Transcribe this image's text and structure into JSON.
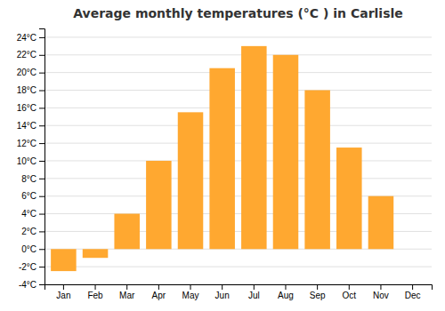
{
  "chart_data": {
    "type": "bar",
    "title": "Average monthly temperatures (°C ) in Carlisle",
    "categories": [
      "Jan",
      "Feb",
      "Mar",
      "Apr",
      "May",
      "Jun",
      "Jul",
      "Aug",
      "Sep",
      "Oct",
      "Nov",
      "Dec"
    ],
    "values": [
      -2.5,
      -1.0,
      4.0,
      10.0,
      15.5,
      20.5,
      23.0,
      22.0,
      18.0,
      11.5,
      6.0,
      0.0
    ],
    "color": "#FFA830",
    "ylim": [
      -4,
      25
    ],
    "yticks": [
      {
        "value": -4,
        "label": "-4°C"
      },
      {
        "value": -2,
        "label": "-2°C"
      },
      {
        "value": 0,
        "label": "0°C"
      },
      {
        "value": 2,
        "label": "2°C"
      },
      {
        "value": 4,
        "label": "4°C"
      },
      {
        "value": 6,
        "label": "6°C"
      },
      {
        "value": 8,
        "label": "8°C"
      },
      {
        "value": 10,
        "label": "10°C"
      },
      {
        "value": 12,
        "label": "12°C"
      },
      {
        "value": 14,
        "label": "14°C"
      },
      {
        "value": 16,
        "label": "16°C"
      },
      {
        "value": 18,
        "label": "18°C"
      },
      {
        "value": 20,
        "label": "20°C"
      },
      {
        "value": 22,
        "label": "22°C"
      },
      {
        "value": 24,
        "label": "24°C"
      }
    ],
    "grid": true
  }
}
